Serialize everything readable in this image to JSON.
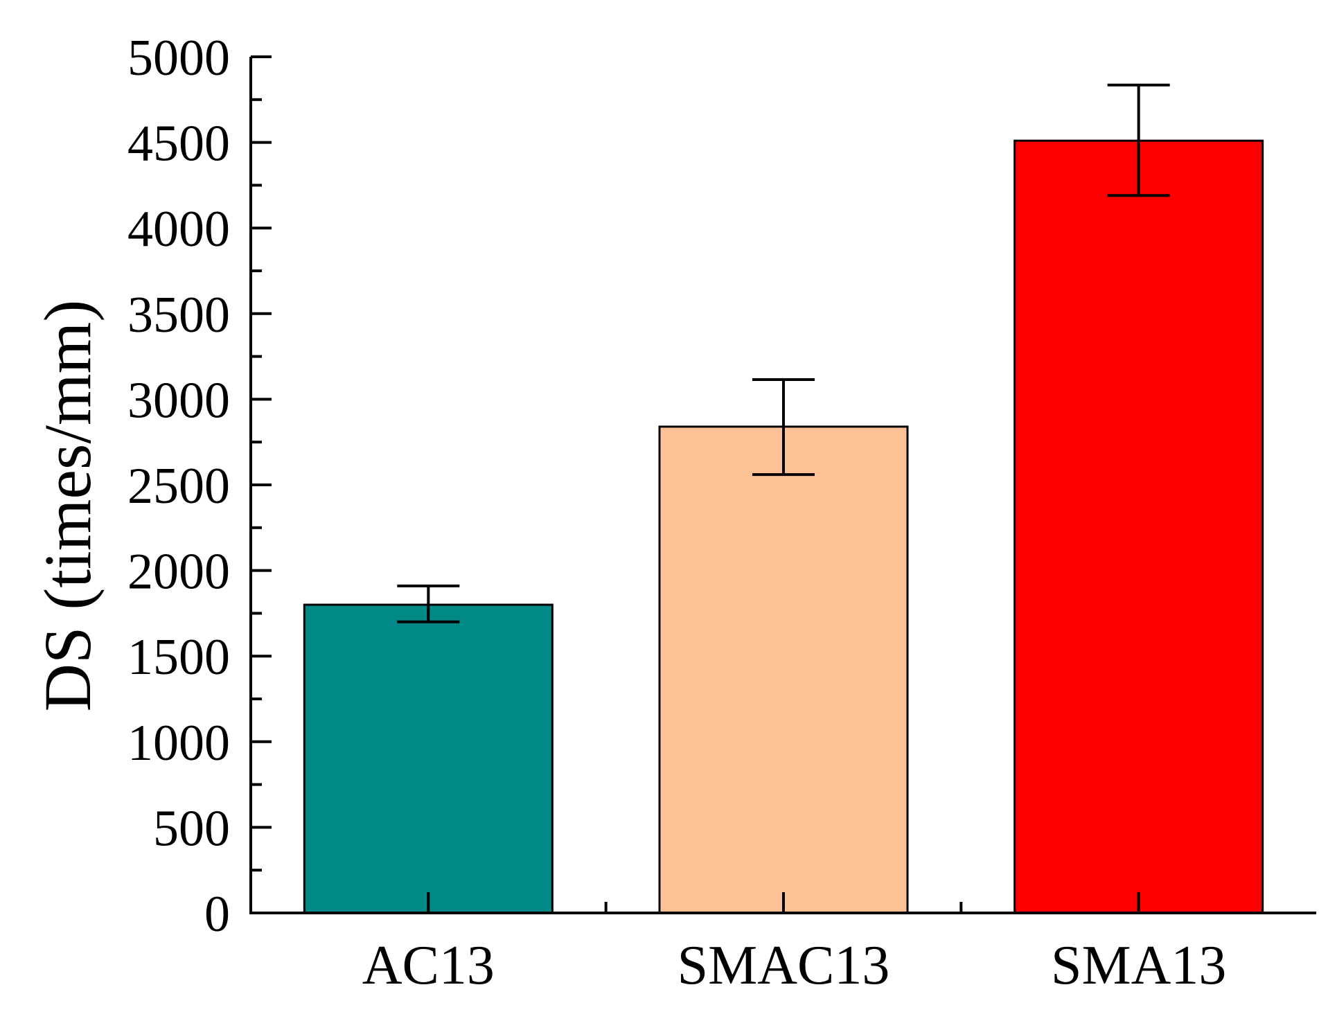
{
  "chart_data": {
    "type": "bar",
    "title": "",
    "xlabel": "",
    "ylabel": "DS (times/mm)",
    "ylim": [
      0,
      5000
    ],
    "yticks": [
      0,
      500,
      1000,
      1500,
      2000,
      2500,
      3000,
      3500,
      4000,
      4500,
      5000
    ],
    "categories": [
      "AC13",
      "SMAC13",
      "SMA13"
    ],
    "values": [
      1800,
      2840,
      4510
    ],
    "errors": [
      {
        "low": 1700,
        "high": 1910
      },
      {
        "low": 2560,
        "high": 3115
      },
      {
        "low": 4190,
        "high": 4835
      }
    ],
    "colors": [
      "#008987",
      "#FEC195",
      "#FF0000"
    ],
    "grid": false,
    "legend": "none"
  }
}
